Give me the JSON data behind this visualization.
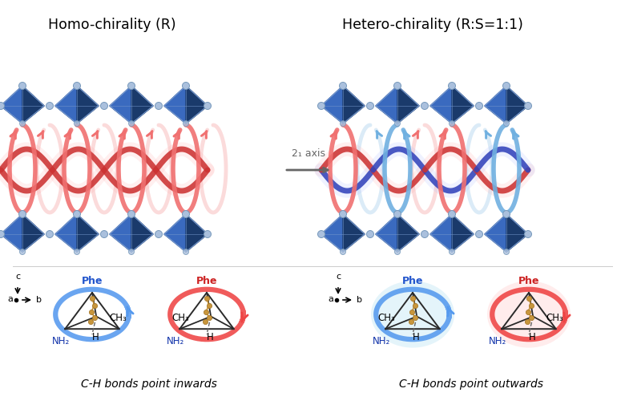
{
  "title_left": "Homo-chirality (R)",
  "title_right": "Hetero-chirality (R:S=1:1)",
  "axis_label": "2₁ axis",
  "bottom_label_left": "C-H bonds point inwards",
  "bottom_label_right": "C-H bonds point outwards",
  "phe_color_blue": "#2255cc",
  "phe_color_red": "#cc2222",
  "crystal_dark": "#1a3a6b",
  "crystal_mid": "#2a5298",
  "crystal_light": "#3a6abf",
  "crystal_edge": "#7799cc",
  "atom_color": "#aac0dd",
  "atom_edge": "#7799bb",
  "helix_red": "#cc3333",
  "helix_red_pale": "#ffaaaa",
  "helix_blue": "#3344bb",
  "helix_blue_pale": "#aabbff",
  "curl_red": "#f07070",
  "curl_blue": "#70b0e0",
  "bg_color": "#ffffff",
  "mol_gold": "#c8963c",
  "nh2_color": "#1133aa",
  "axis_color": "#444444",
  "arrow_mid_color": "#666666"
}
